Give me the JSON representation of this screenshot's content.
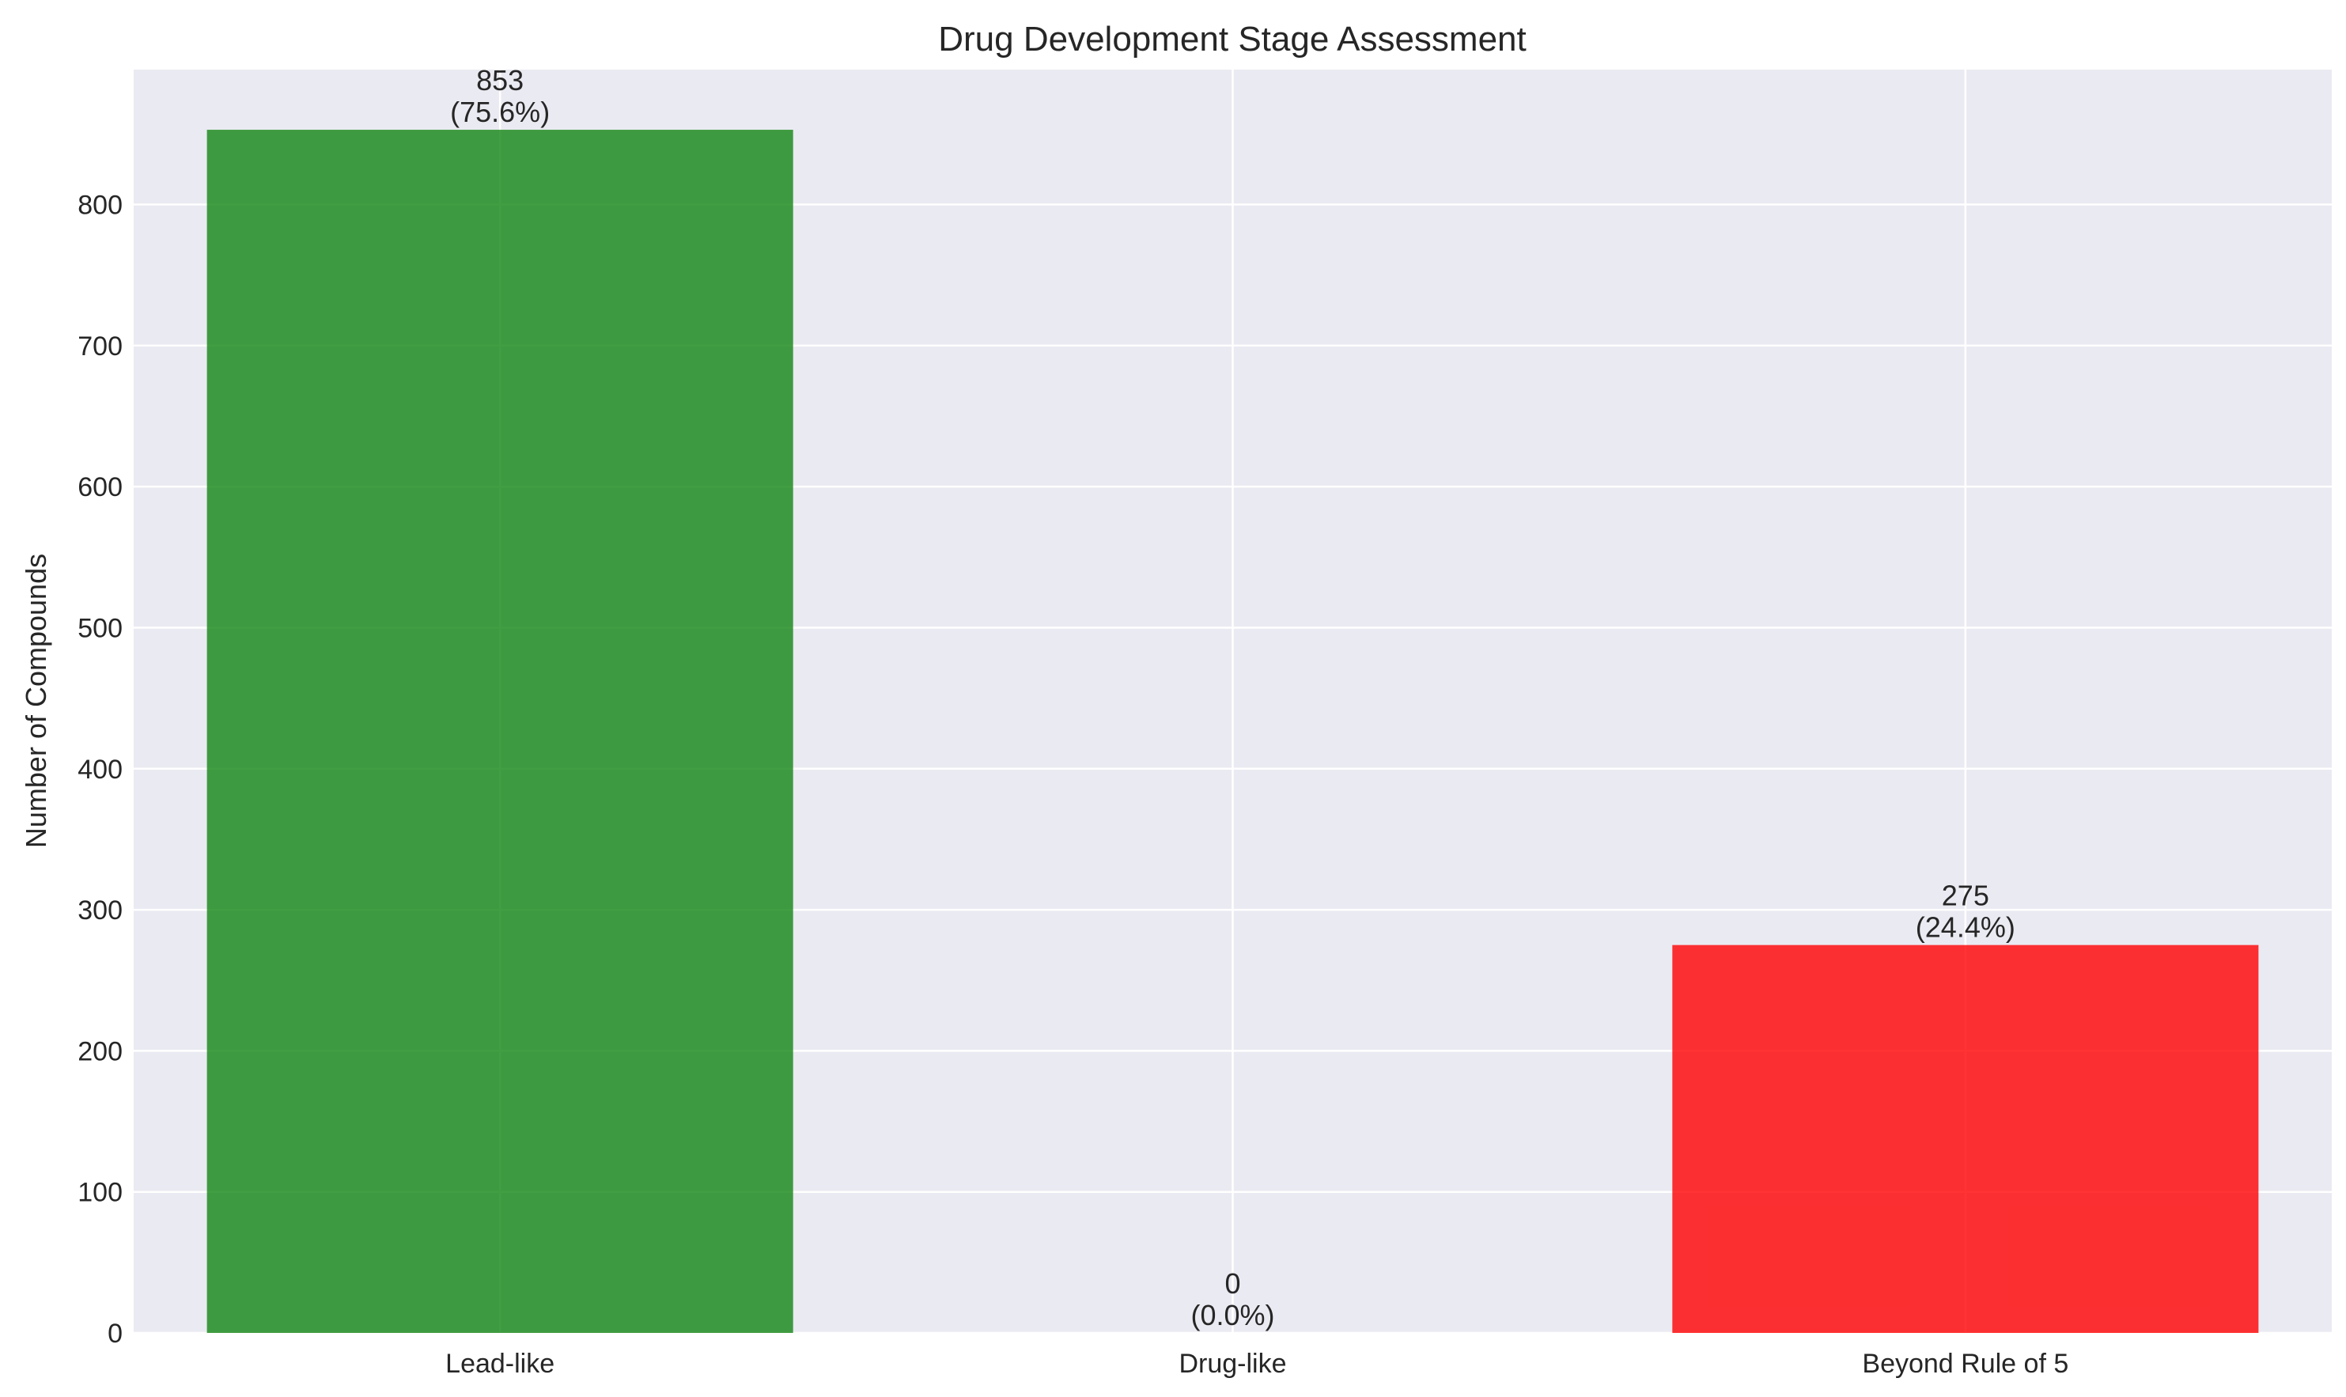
{
  "chart_data": {
    "type": "bar",
    "title": "Drug Development Stage Assessment",
    "xlabel": "",
    "ylabel": "Number of Compounds",
    "categories": [
      "Lead-like",
      "Drug-like",
      "Beyond Rule of 5"
    ],
    "values": [
      853,
      0,
      275
    ],
    "value_labels": [
      "853",
      "0",
      "275"
    ],
    "percent_labels": [
      "(75.6%)",
      "(0.0%)",
      "(24.4%)"
    ],
    "colors": [
      "#138613",
      "#ffa500",
      "#ff0000"
    ],
    "ylim": [
      0,
      895.65
    ],
    "yticks": [
      0,
      100,
      200,
      300,
      400,
      500,
      600,
      700,
      800
    ],
    "grid": true,
    "background": "#eaeaf2"
  }
}
